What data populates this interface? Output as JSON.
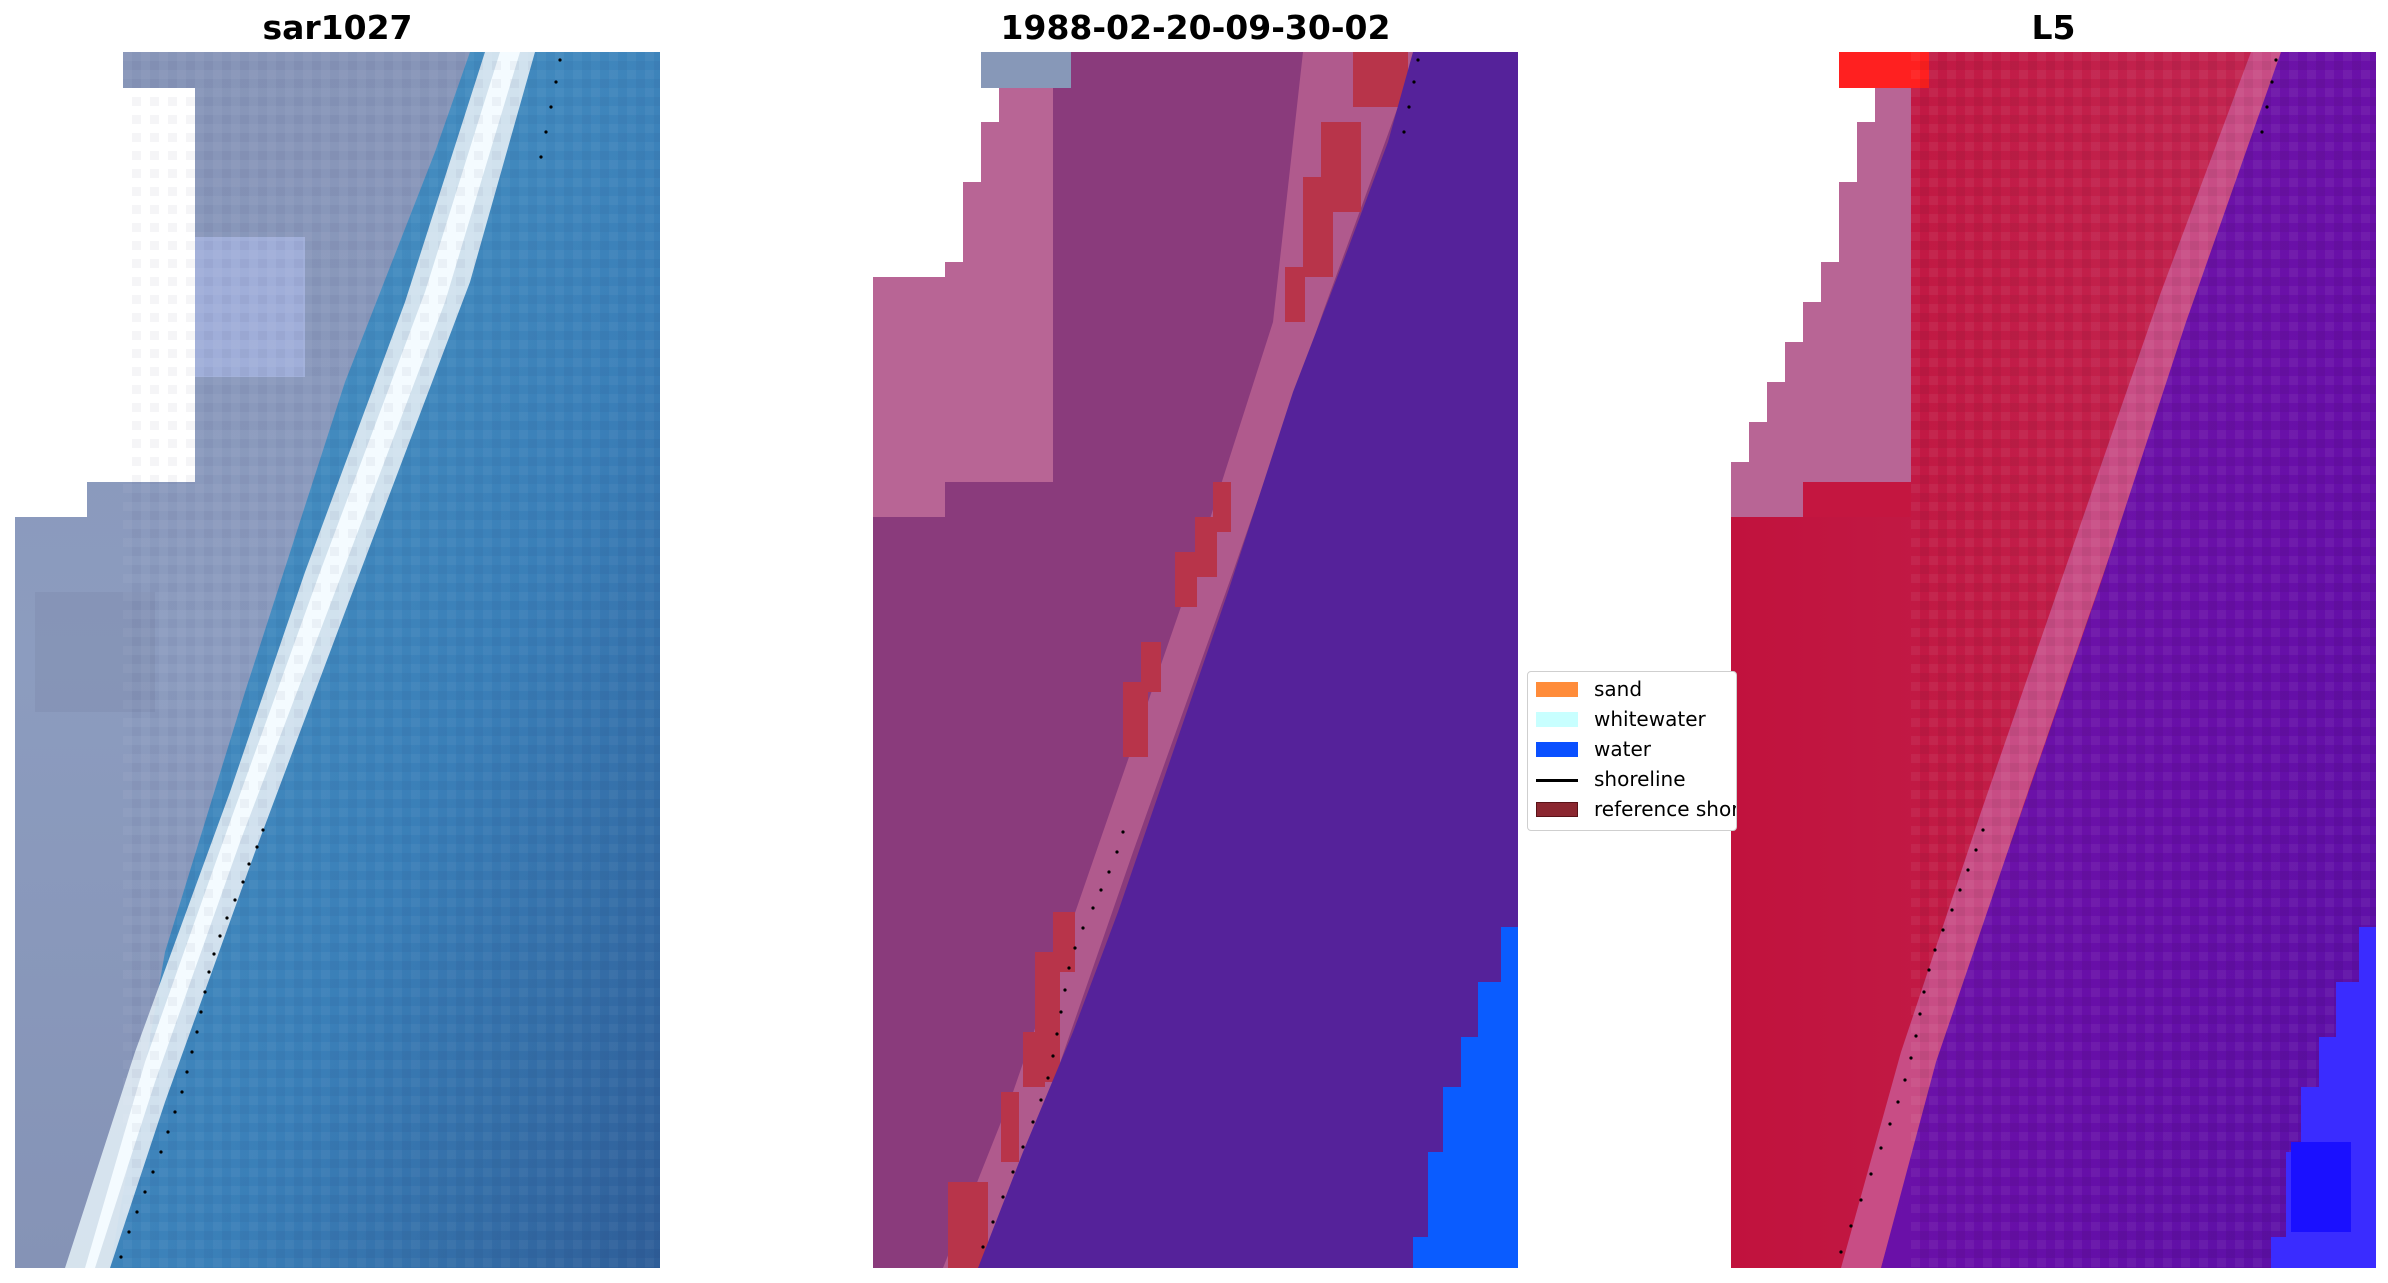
{
  "panels": [
    {
      "title": "sar1027"
    },
    {
      "title": "1988-02-20-09-30-02"
    },
    {
      "title": "L5"
    }
  ],
  "legend": {
    "items": [
      {
        "label": "sand",
        "kind": "patch",
        "color": "#ff8c3a"
      },
      {
        "label": "whitewater",
        "kind": "patch",
        "color": "#c8ffff"
      },
      {
        "label": "water",
        "kind": "patch",
        "color": "#0a50ff"
      },
      {
        "label": "shoreline",
        "kind": "line",
        "color": "#000000"
      },
      {
        "label": "reference shoreline",
        "kind": "patch",
        "color": "#8b2730"
      }
    ]
  },
  "colors": {
    "rgb_land": "#8d9cbd",
    "rgb_water": "#3a7fb8",
    "rgb_surf": "#e6f2f8",
    "class_land": "#8a3b7c",
    "class_land_light": "#b86595",
    "class_water": "#55229a",
    "class_water_blue": "#0a5cff",
    "class_reference": "#b8344a",
    "index_land": "#c01a42",
    "index_water": "#6a10a8",
    "index_blue": "#2020ff",
    "index_red": "#ff2020"
  }
}
